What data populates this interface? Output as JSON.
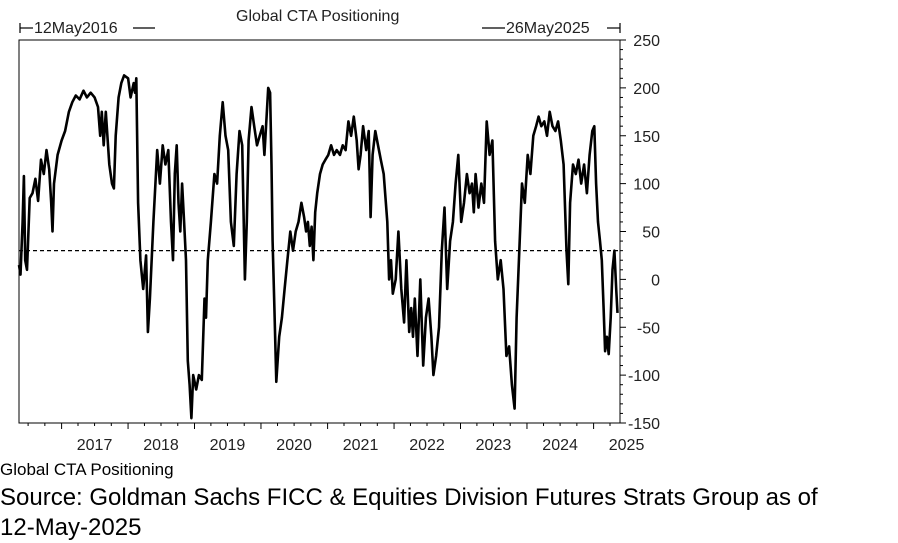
{
  "chart_data": {
    "type": "line",
    "title": "Global CTA Positioning",
    "start_label": "12May2016",
    "end_label": "26May2025",
    "x_ticks": [
      "2017",
      "2018",
      "2019",
      "2020",
      "2021",
      "2022",
      "2023",
      "2024",
      "2025"
    ],
    "y_ticks": [
      250,
      200,
      150,
      100,
      50,
      0,
      -50,
      -100,
      -150
    ],
    "xlim": [
      "2016-05-12",
      "2025-05-26"
    ],
    "ylim": [
      -150,
      250
    ],
    "reference_line": 30,
    "series": [
      {
        "name": "Global CTA Positioning",
        "color": "#000000",
        "points": [
          [
            "2016-05-12",
            15
          ],
          [
            "2016-05-20",
            5
          ],
          [
            "2016-06-01",
            60
          ],
          [
            "2016-06-08",
            108
          ],
          [
            "2016-06-15",
            20
          ],
          [
            "2016-06-25",
            10
          ],
          [
            "2016-07-10",
            85
          ],
          [
            "2016-07-25",
            90
          ],
          [
            "2016-08-10",
            105
          ],
          [
            "2016-08-25",
            82
          ],
          [
            "2016-09-10",
            125
          ],
          [
            "2016-09-25",
            110
          ],
          [
            "2016-10-10",
            135
          ],
          [
            "2016-10-25",
            115
          ],
          [
            "2016-11-05",
            80
          ],
          [
            "2016-11-12",
            50
          ],
          [
            "2016-11-20",
            100
          ],
          [
            "2016-12-10",
            130
          ],
          [
            "2017-01-01",
            145
          ],
          [
            "2017-01-20",
            155
          ],
          [
            "2017-02-10",
            175
          ],
          [
            "2017-03-01",
            185
          ],
          [
            "2017-03-20",
            192
          ],
          [
            "2017-04-10",
            188
          ],
          [
            "2017-05-01",
            197
          ],
          [
            "2017-05-20",
            190
          ],
          [
            "2017-06-10",
            195
          ],
          [
            "2017-07-01",
            190
          ],
          [
            "2017-07-20",
            180
          ],
          [
            "2017-08-01",
            150
          ],
          [
            "2017-08-10",
            175
          ],
          [
            "2017-08-20",
            140
          ],
          [
            "2017-09-01",
            175
          ],
          [
            "2017-09-20",
            120
          ],
          [
            "2017-10-05",
            100
          ],
          [
            "2017-10-15",
            95
          ],
          [
            "2017-10-25",
            150
          ],
          [
            "2017-11-10",
            190
          ],
          [
            "2017-11-25",
            205
          ],
          [
            "2017-12-10",
            213
          ],
          [
            "2018-01-01",
            210
          ],
          [
            "2018-01-15",
            190
          ],
          [
            "2018-02-01",
            205
          ],
          [
            "2018-02-08",
            195
          ],
          [
            "2018-02-15",
            210
          ],
          [
            "2018-02-25",
            80
          ],
          [
            "2018-03-10",
            20
          ],
          [
            "2018-03-25",
            -10
          ],
          [
            "2018-04-10",
            25
          ],
          [
            "2018-04-20",
            -55
          ],
          [
            "2018-05-01",
            -20
          ],
          [
            "2018-05-20",
            60
          ],
          [
            "2018-06-10",
            135
          ],
          [
            "2018-06-25",
            100
          ],
          [
            "2018-07-10",
            140
          ],
          [
            "2018-07-25",
            120
          ],
          [
            "2018-08-10",
            135
          ],
          [
            "2018-08-25",
            60
          ],
          [
            "2018-09-05",
            20
          ],
          [
            "2018-09-15",
            110
          ],
          [
            "2018-09-25",
            140
          ],
          [
            "2018-10-05",
            80
          ],
          [
            "2018-10-15",
            50
          ],
          [
            "2018-10-25",
            100
          ],
          [
            "2018-11-05",
            60
          ],
          [
            "2018-11-15",
            20
          ],
          [
            "2018-11-25",
            -85
          ],
          [
            "2018-12-05",
            -110
          ],
          [
            "2018-12-15",
            -145
          ],
          [
            "2018-12-25",
            -100
          ],
          [
            "2019-01-10",
            -115
          ],
          [
            "2019-01-25",
            -100
          ],
          [
            "2019-02-10",
            -105
          ],
          [
            "2019-02-25",
            -20
          ],
          [
            "2019-03-05",
            -40
          ],
          [
            "2019-03-15",
            20
          ],
          [
            "2019-04-01",
            60
          ],
          [
            "2019-04-20",
            110
          ],
          [
            "2019-05-05",
            100
          ],
          [
            "2019-05-20",
            150
          ],
          [
            "2019-06-05",
            185
          ],
          [
            "2019-06-20",
            150
          ],
          [
            "2019-07-05",
            135
          ],
          [
            "2019-07-20",
            60
          ],
          [
            "2019-08-05",
            35
          ],
          [
            "2019-08-20",
            110
          ],
          [
            "2019-09-05",
            155
          ],
          [
            "2019-09-20",
            140
          ],
          [
            "2019-10-05",
            0
          ],
          [
            "2019-10-15",
            60
          ],
          [
            "2019-10-25",
            145
          ],
          [
            "2019-11-10",
            180
          ],
          [
            "2019-11-25",
            160
          ],
          [
            "2019-12-10",
            140
          ],
          [
            "2019-12-25",
            150
          ],
          [
            "2020-01-10",
            160
          ],
          [
            "2020-01-20",
            130
          ],
          [
            "2020-02-01",
            170
          ],
          [
            "2020-02-10",
            200
          ],
          [
            "2020-02-20",
            195
          ],
          [
            "2020-02-28",
            120
          ],
          [
            "2020-03-05",
            40
          ],
          [
            "2020-03-15",
            -30
          ],
          [
            "2020-03-25",
            -107
          ],
          [
            "2020-04-10",
            -60
          ],
          [
            "2020-04-25",
            -40
          ],
          [
            "2020-05-10",
            -10
          ],
          [
            "2020-05-25",
            20
          ],
          [
            "2020-06-10",
            50
          ],
          [
            "2020-06-25",
            30
          ],
          [
            "2020-07-10",
            50
          ],
          [
            "2020-07-25",
            60
          ],
          [
            "2020-08-10",
            80
          ],
          [
            "2020-08-25",
            65
          ],
          [
            "2020-09-05",
            50
          ],
          [
            "2020-09-15",
            60
          ],
          [
            "2020-09-25",
            35
          ],
          [
            "2020-10-05",
            55
          ],
          [
            "2020-10-15",
            20
          ],
          [
            "2020-10-25",
            70
          ],
          [
            "2020-11-05",
            90
          ],
          [
            "2020-11-20",
            110
          ],
          [
            "2020-12-05",
            120
          ],
          [
            "2020-12-20",
            125
          ],
          [
            "2021-01-05",
            130
          ],
          [
            "2021-01-20",
            140
          ],
          [
            "2021-02-05",
            130
          ],
          [
            "2021-02-20",
            135
          ],
          [
            "2021-03-10",
            130
          ],
          [
            "2021-03-25",
            140
          ],
          [
            "2021-04-10",
            135
          ],
          [
            "2021-04-25",
            165
          ],
          [
            "2021-05-10",
            150
          ],
          [
            "2021-05-25",
            170
          ],
          [
            "2021-06-10",
            145
          ],
          [
            "2021-06-20",
            115
          ],
          [
            "2021-07-01",
            130
          ],
          [
            "2021-07-15",
            160
          ],
          [
            "2021-08-01",
            135
          ],
          [
            "2021-08-15",
            155
          ],
          [
            "2021-08-25",
            65
          ],
          [
            "2021-09-05",
            130
          ],
          [
            "2021-09-20",
            155
          ],
          [
            "2021-10-05",
            140
          ],
          [
            "2021-10-20",
            125
          ],
          [
            "2021-11-05",
            110
          ],
          [
            "2021-11-15",
            85
          ],
          [
            "2021-11-25",
            60
          ],
          [
            "2021-12-05",
            0
          ],
          [
            "2021-12-15",
            20
          ],
          [
            "2021-12-25",
            -15
          ],
          [
            "2022-01-10",
            0
          ],
          [
            "2022-01-25",
            50
          ],
          [
            "2022-02-10",
            -10
          ],
          [
            "2022-02-25",
            -45
          ],
          [
            "2022-03-10",
            20
          ],
          [
            "2022-03-25",
            -55
          ],
          [
            "2022-04-05",
            -30
          ],
          [
            "2022-04-15",
            -60
          ],
          [
            "2022-04-25",
            -20
          ],
          [
            "2022-05-10",
            -80
          ],
          [
            "2022-05-25",
            0
          ],
          [
            "2022-06-10",
            -90
          ],
          [
            "2022-06-25",
            -40
          ],
          [
            "2022-07-10",
            -20
          ],
          [
            "2022-07-25",
            -60
          ],
          [
            "2022-08-05",
            -100
          ],
          [
            "2022-08-20",
            -80
          ],
          [
            "2022-09-05",
            -50
          ],
          [
            "2022-09-20",
            30
          ],
          [
            "2022-10-05",
            75
          ],
          [
            "2022-10-20",
            -10
          ],
          [
            "2022-11-05",
            40
          ],
          [
            "2022-11-20",
            60
          ],
          [
            "2022-12-05",
            100
          ],
          [
            "2022-12-20",
            130
          ],
          [
            "2023-01-05",
            60
          ],
          [
            "2023-01-20",
            80
          ],
          [
            "2023-02-05",
            110
          ],
          [
            "2023-02-20",
            90
          ],
          [
            "2023-03-05",
            100
          ],
          [
            "2023-03-15",
            70
          ],
          [
            "2023-03-25",
            110
          ],
          [
            "2023-04-10",
            75
          ],
          [
            "2023-04-25",
            100
          ],
          [
            "2023-05-10",
            80
          ],
          [
            "2023-05-25",
            165
          ],
          [
            "2023-06-10",
            130
          ],
          [
            "2023-06-25",
            145
          ],
          [
            "2023-07-10",
            40
          ],
          [
            "2023-07-25",
            0
          ],
          [
            "2023-08-10",
            20
          ],
          [
            "2023-08-25",
            -10
          ],
          [
            "2023-09-10",
            -80
          ],
          [
            "2023-09-25",
            -70
          ],
          [
            "2023-10-10",
            -110
          ],
          [
            "2023-10-25",
            -135
          ],
          [
            "2023-11-05",
            -40
          ],
          [
            "2023-11-20",
            30
          ],
          [
            "2023-12-05",
            100
          ],
          [
            "2023-12-20",
            80
          ],
          [
            "2024-01-05",
            130
          ],
          [
            "2024-01-20",
            110
          ],
          [
            "2024-02-05",
            150
          ],
          [
            "2024-02-20",
            160
          ],
          [
            "2024-03-05",
            170
          ],
          [
            "2024-03-20",
            160
          ],
          [
            "2024-04-05",
            165
          ],
          [
            "2024-04-20",
            150
          ],
          [
            "2024-05-05",
            175
          ],
          [
            "2024-05-20",
            160
          ],
          [
            "2024-06-05",
            155
          ],
          [
            "2024-06-20",
            165
          ],
          [
            "2024-07-05",
            145
          ],
          [
            "2024-07-20",
            120
          ],
          [
            "2024-08-05",
            30
          ],
          [
            "2024-08-15",
            -5
          ],
          [
            "2024-08-25",
            80
          ],
          [
            "2024-09-10",
            120
          ],
          [
            "2024-09-25",
            110
          ],
          [
            "2024-10-10",
            125
          ],
          [
            "2024-10-25",
            100
          ],
          [
            "2024-11-10",
            120
          ],
          [
            "2024-11-25",
            90
          ],
          [
            "2024-12-10",
            130
          ],
          [
            "2024-12-25",
            155
          ],
          [
            "2025-01-05",
            160
          ],
          [
            "2025-01-15",
            100
          ],
          [
            "2025-01-25",
            60
          ],
          [
            "2025-02-05",
            40
          ],
          [
            "2025-02-15",
            20
          ],
          [
            "2025-02-25",
            -30
          ],
          [
            "2025-03-05",
            -75
          ],
          [
            "2025-03-15",
            -60
          ],
          [
            "2025-03-25",
            -78
          ],
          [
            "2025-04-05",
            -40
          ],
          [
            "2025-04-15",
            10
          ],
          [
            "2025-04-25",
            30
          ],
          [
            "2025-05-05",
            -10
          ],
          [
            "2025-05-12",
            -35
          ]
        ]
      }
    ]
  },
  "legend_name": "Global CTA Positioning",
  "source_line_1": "Source: Goldman Sachs FICC & Equities Division Futures Strats Group as of",
  "source_line_2": "12-May-2025"
}
